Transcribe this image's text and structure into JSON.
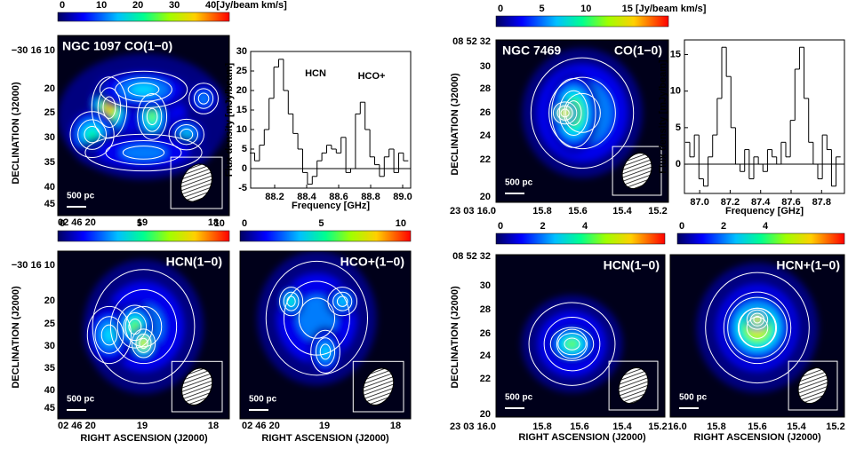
{
  "ngc1097": {
    "co": {
      "title": "NGC 1097 CO(1−0)",
      "colorbar": [
        "0",
        "10",
        "20",
        "30",
        "40[Jy/beam km/s]"
      ],
      "scale": "500 pc"
    },
    "hcn": {
      "title": "HCN(1−0)",
      "colorbar": [
        "0",
        "5",
        "10"
      ],
      "scale": "500 pc"
    },
    "hcop": {
      "title": "HCO+(1−0)",
      "colorbar": [
        "0",
        "5",
        "10"
      ],
      "scale": "500 pc"
    },
    "dec_label": "DECLINATION (J2000)",
    "dec_ticks": [
      "−30 16 10",
      "20",
      "25",
      "30",
      "35",
      "40",
      "45"
    ],
    "ra_ticks": [
      "02 46 20",
      "19",
      "18"
    ],
    "ra_label": "RIGHT ASCENSION (J2000)",
    "spectrum": {
      "ylabel": "Flux density [mJy/beam]",
      "xlabel": "Frequency [GHz]",
      "annotations": [
        "HCN",
        "HCO+"
      ],
      "x": [
        88.06,
        88.09,
        88.12,
        88.15,
        88.18,
        88.21,
        88.24,
        88.27,
        88.3,
        88.33,
        88.36,
        88.39,
        88.42,
        88.45,
        88.48,
        88.51,
        88.54,
        88.57,
        88.6,
        88.63,
        88.66,
        88.69,
        88.72,
        88.75,
        88.78,
        88.81,
        88.84,
        88.87,
        88.9,
        88.93,
        88.96,
        88.99,
        89.02
      ],
      "values": [
        4,
        2,
        6,
        10,
        18,
        26,
        28,
        20,
        14,
        9,
        5,
        -1,
        -4,
        -2,
        2,
        4,
        6,
        5,
        4,
        8,
        -1,
        0,
        14,
        17,
        10,
        3,
        1,
        -2,
        3,
        5,
        -1,
        4,
        2
      ],
      "xlim": [
        88.05,
        89.05
      ],
      "ylim": [
        -5,
        30
      ],
      "xticks": [
        88.2,
        88.4,
        88.6,
        88.8,
        {
          "value": 89,
          "label": "89.0"
        }
      ],
      "yticks": [
        -5,
        0,
        5,
        10,
        15,
        20,
        25,
        30
      ]
    }
  },
  "ngc7469": {
    "co": {
      "name": "NGC 7469",
      "title": "CO(1−0)",
      "colorbar": [
        "0",
        "5",
        "10",
        "15 [Jy/beam km/s]"
      ],
      "scale": "500 pc"
    },
    "hcn": {
      "title": "HCN(1−0)",
      "colorbar": [
        "0",
        "2",
        "4"
      ],
      "scale": "500 pc"
    },
    "hcnp": {
      "title": "HCN+(1−0)",
      "colorbar": [
        "0",
        "2",
        "4"
      ],
      "scale": "500 pc"
    },
    "dec_label": "DECLINATION (J2000)",
    "dec_ticks": [
      "08 52 32",
      "30",
      "28",
      "26",
      "24",
      "22",
      "20"
    ],
    "ra_ticks": [
      "23 03 16.0",
      "15.8",
      "15.6",
      "15.4",
      "15.2"
    ],
    "ra_ticks_right": [
      "16.0",
      "15.8",
      "15.6",
      "15.4",
      "15.2"
    ],
    "ra_label": "RIGHT ASCENSION (J2000)",
    "spectrum": {
      "ylabel": "Flux density [mJy/beam]",
      "xlabel": "Frequency [GHz]",
      "x": [
        86.92,
        86.95,
        86.98,
        87.01,
        87.04,
        87.07,
        87.1,
        87.13,
        87.16,
        87.19,
        87.22,
        87.25,
        87.28,
        87.31,
        87.34,
        87.37,
        87.4,
        87.43,
        87.46,
        87.49,
        87.52,
        87.55,
        87.58,
        87.61,
        87.64,
        87.67,
        87.7,
        87.73,
        87.76,
        87.79,
        87.82,
        87.85,
        87.88,
        87.91
      ],
      "values": [
        3,
        1,
        4,
        -2,
        -3,
        1,
        4,
        9,
        16,
        12,
        5,
        0,
        -1,
        2,
        -2,
        1,
        0,
        -1,
        2,
        1,
        0,
        3,
        1,
        6,
        13,
        16,
        9,
        3,
        0,
        -2,
        4,
        2,
        -3,
        1
      ],
      "xlim": [
        86.9,
        87.95
      ],
      "ylim": [
        -4,
        17
      ],
      "xticks": [
        {
          "value": 87,
          "label": "87.0"
        },
        87.2,
        87.4,
        87.6,
        87.8
      ],
      "yticks": [
        0,
        5,
        10,
        15
      ]
    }
  }
}
